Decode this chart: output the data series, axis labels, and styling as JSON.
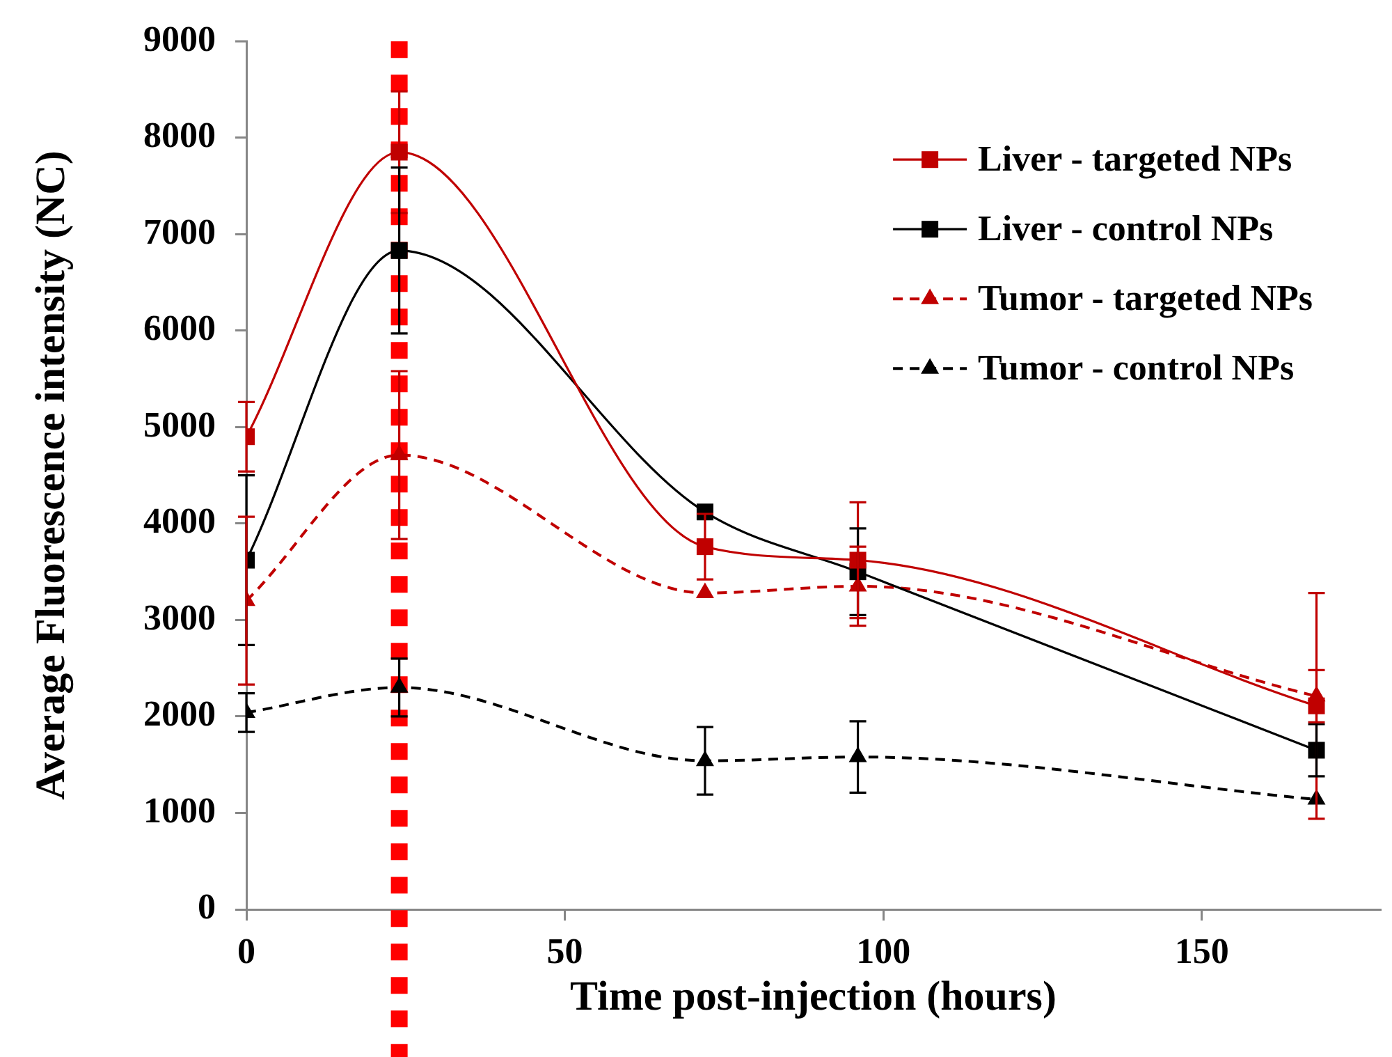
{
  "chart_data": {
    "type": "line",
    "xlabel": "Time post-injection (hours)",
    "ylabel": "Average Fluorescence intensity (NC)",
    "x": [
      0,
      24,
      72,
      96,
      168
    ],
    "xlim": [
      0,
      178
    ],
    "xticks": [
      0,
      50,
      100,
      150
    ],
    "ylim": [
      0,
      9000
    ],
    "yticks": [
      0,
      1000,
      2000,
      3000,
      4000,
      5000,
      6000,
      7000,
      8000,
      9000
    ],
    "grid": false,
    "legend": "top right",
    "series": [
      {
        "name": "Liver - targeted NPs",
        "color": "#c00000",
        "marker": "square",
        "line_style": "solid",
        "values": [
          4900,
          7850,
          3760,
          3620,
          2110
        ],
        "errors": [
          360,
          630,
          340,
          600,
          1170
        ]
      },
      {
        "name": "Liver - control NPs",
        "color": "#000000",
        "marker": "square",
        "line_style": "solid",
        "values": [
          3620,
          6830,
          4120,
          3500,
          1650
        ],
        "errors": [
          880,
          860,
          null,
          450,
          270
        ]
      },
      {
        "name": "Tumor - targeted NPs",
        "color": "#c00000",
        "marker": "triangle",
        "line_style": "dashed",
        "values": [
          3200,
          4710,
          3280,
          3350,
          2210
        ],
        "errors": [
          870,
          870,
          null,
          410,
          270
        ]
      },
      {
        "name": "Tumor - control NPs",
        "color": "#000000",
        "marker": "triangle",
        "line_style": "dashed",
        "values": [
          2040,
          2300,
          1540,
          1580,
          1140
        ],
        "errors": [
          200,
          300,
          350,
          370,
          null
        ]
      }
    ],
    "ref_lines": [
      {
        "axis": "x",
        "value": 24,
        "color": "#ff0000",
        "line_style": "dotted"
      }
    ]
  }
}
